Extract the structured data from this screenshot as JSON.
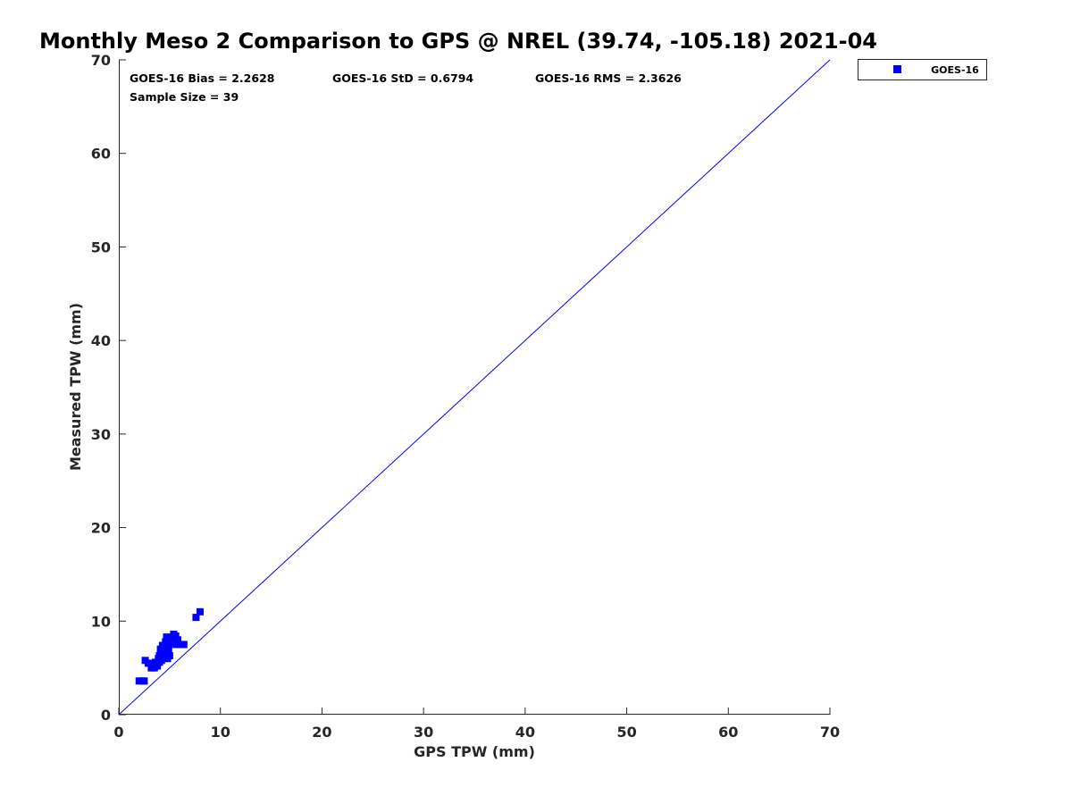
{
  "chart_data": {
    "type": "scatter",
    "title": "Monthly Meso 2 Comparison to GPS @ NREL (39.74, -105.18) 2021-04",
    "xlabel": "GPS TPW (mm)",
    "ylabel": "Measured TPW (mm)",
    "xlim": [
      0,
      70
    ],
    "ylim": [
      0,
      70
    ],
    "x_ticks": [
      0,
      10,
      20,
      30,
      40,
      50,
      60,
      70
    ],
    "y_ticks": [
      0,
      10,
      20,
      30,
      40,
      50,
      60,
      70
    ],
    "x_tick_labels": [
      "0",
      "10",
      "20",
      "30",
      "40",
      "50",
      "60",
      "70"
    ],
    "y_tick_labels": [
      "0",
      "10",
      "20",
      "30",
      "40",
      "50",
      "60",
      "70"
    ],
    "grid": false,
    "legend_position": "outside-top-right",
    "reference_line": {
      "from": [
        0,
        0
      ],
      "to": [
        70,
        70
      ],
      "color": "#0000ff"
    },
    "stats": {
      "bias": "GOES-16 Bias = 2.2628",
      "std": "GOES-16 StD = 0.6794",
      "rms": "GOES-16 RMS = 2.3626",
      "sample": "Sample Size = 39"
    },
    "series": [
      {
        "name": "GOES-16",
        "color": "#0000ff",
        "marker": "square",
        "points": [
          [
            2.0,
            3.6
          ],
          [
            2.3,
            3.6
          ],
          [
            2.5,
            3.6
          ],
          [
            2.6,
            5.8
          ],
          [
            2.9,
            5.5
          ],
          [
            3.2,
            5.0
          ],
          [
            3.5,
            5.0
          ],
          [
            3.6,
            5.6
          ],
          [
            3.8,
            5.2
          ],
          [
            3.9,
            6.0
          ],
          [
            4.0,
            5.6
          ],
          [
            4.1,
            6.5
          ],
          [
            4.1,
            7.0
          ],
          [
            4.2,
            5.8
          ],
          [
            4.3,
            6.2
          ],
          [
            4.3,
            7.4
          ],
          [
            4.4,
            6.8
          ],
          [
            4.5,
            6.0
          ],
          [
            4.6,
            7.8
          ],
          [
            4.6,
            6.5
          ],
          [
            4.7,
            8.3
          ],
          [
            4.8,
            6.0
          ],
          [
            4.8,
            7.2
          ],
          [
            4.9,
            6.8
          ],
          [
            5.0,
            6.3
          ],
          [
            5.0,
            7.5
          ],
          [
            5.2,
            8.2
          ],
          [
            5.4,
            8.6
          ],
          [
            5.6,
            8.4
          ],
          [
            5.7,
            7.5
          ],
          [
            5.8,
            8.0
          ],
          [
            6.0,
            7.5
          ],
          [
            6.2,
            7.5
          ],
          [
            6.4,
            7.5
          ],
          [
            4.5,
            7.1
          ],
          [
            3.7,
            5.4
          ],
          [
            4.0,
            6.3
          ],
          [
            7.6,
            10.4
          ],
          [
            8.0,
            11.0
          ]
        ]
      }
    ]
  }
}
